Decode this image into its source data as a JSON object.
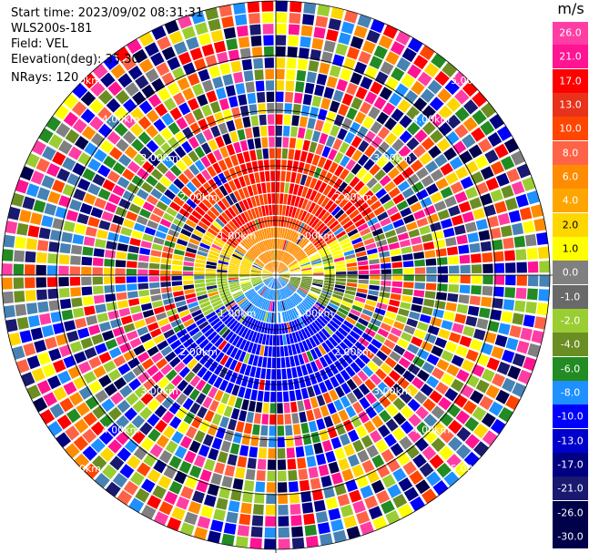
{
  "metadata": {
    "start_time": "Start time: 2023/09/02 08:31:31",
    "instrument": "WLS200s-181",
    "field": "Field: VEL",
    "elevation": "Elevation(deg): 35.30",
    "nrays": "NRays: 120"
  },
  "ring_labels": [
    "1.00km",
    "2.00km",
    "3.00km",
    "4.00km",
    "5.00km"
  ],
  "colorbar": {
    "unit": "m/s",
    "ticks": [
      "26.0",
      "21.0",
      "17.0",
      "13.0",
      "10.0",
      "8.0",
      "6.0",
      "4.0",
      "2.0",
      "1.0",
      "0.0",
      "-1.0",
      "-2.0",
      "-4.0",
      "-6.0",
      "-8.0",
      "-10.0",
      "-13.0",
      "-17.0",
      "-21.0",
      "-26.0",
      "-30.0"
    ],
    "colors": [
      "#ff3ea4",
      "#ff1493",
      "#ff0000",
      "#e8331a",
      "#ff4500",
      "#ff6347",
      "#ff8c00",
      "#ffa500",
      "#ffd700",
      "#ffff00",
      "#808080",
      "#696969",
      "#9acd32",
      "#6b8e23",
      "#228b22",
      "#1e90ff",
      "#0000ff",
      "#0000cd",
      "#000080",
      "#191970",
      "#00004b"
    ]
  },
  "chart_data": {
    "type": "polar-ppi",
    "field": "VEL",
    "units": "m/s",
    "nrays": 120,
    "range_rings_km": [
      1,
      2,
      3,
      4,
      5
    ],
    "color_scale": {
      "min": -30.0,
      "max": 26.0
    }
  }
}
